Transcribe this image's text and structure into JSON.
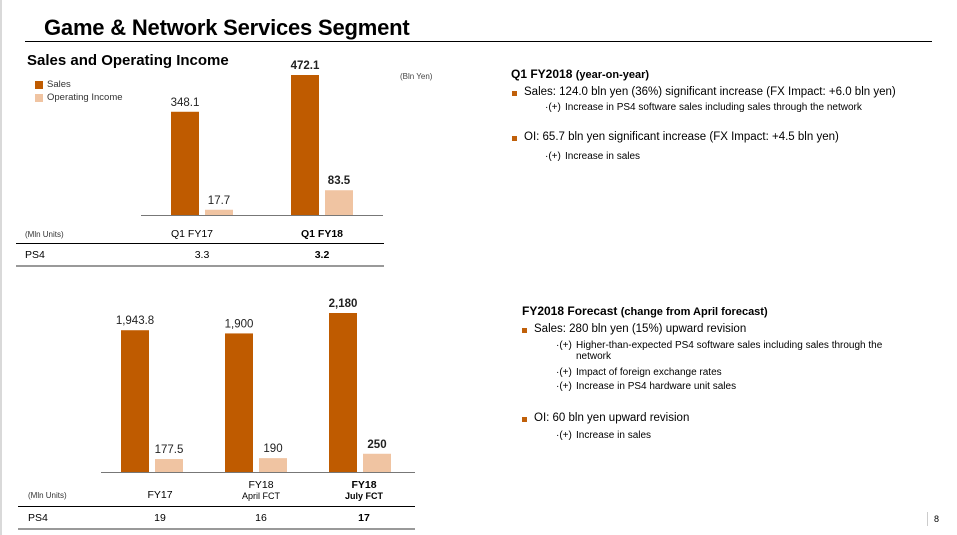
{
  "page": {
    "title": "Game & Network Services Segment",
    "page_number": "8"
  },
  "colors": {
    "sales": "#bf5b00",
    "operating_income": "#f0c4a2",
    "bullet": "#c0600a"
  },
  "top_chart": {
    "subtitle": "Sales and Operating Income",
    "unit_label": "(Bln Yen)",
    "legend": [
      "Sales",
      "Operating Income"
    ],
    "units_label": "(Mln Units)",
    "ps4_label": "PS4",
    "categories": [
      {
        "label": "Q1 FY17",
        "sub": "",
        "bold": false,
        "ps4": "3.3"
      },
      {
        "label": "Q1 FY18",
        "sub": "",
        "bold": true,
        "ps4": "3.2"
      }
    ]
  },
  "bottom_chart": {
    "units_label": "(Mln Units)",
    "ps4_label": "PS4",
    "categories": [
      {
        "label": "FY17",
        "sub": "",
        "bold": false,
        "ps4": "19"
      },
      {
        "label": "FY18",
        "sub": "April FCT",
        "bold": false,
        "ps4": "16"
      },
      {
        "label": "FY18",
        "sub": "July FCT",
        "bold": true,
        "ps4": "17"
      }
    ]
  },
  "chart_data": [
    {
      "type": "bar",
      "title": "Sales and Operating Income",
      "ylabel": "Bln Yen",
      "categories": [
        "Q1 FY17",
        "Q1 FY18"
      ],
      "series": [
        {
          "name": "Sales",
          "values": [
            348.1,
            472.1
          ],
          "labels": [
            "348.1",
            "472.1"
          ]
        },
        {
          "name": "Operating Income",
          "values": [
            17.7,
            83.5
          ],
          "labels": [
            "17.7",
            "83.5"
          ]
        }
      ],
      "bold_category_index": 1,
      "legend": "top-left",
      "grid": false
    },
    {
      "type": "bar",
      "title": "",
      "ylabel": "Bln Yen",
      "categories": [
        "FY17",
        "FY18 April FCT",
        "FY18 July FCT"
      ],
      "series": [
        {
          "name": "Sales",
          "values": [
            1943.8,
            1900,
            2180
          ],
          "labels": [
            "1,943.8",
            "1,900",
            "2,180"
          ]
        },
        {
          "name": "Operating Income",
          "values": [
            177.5,
            190,
            250
          ],
          "labels": [
            "177.5",
            "190",
            "250"
          ]
        }
      ],
      "bold_category_index": 2,
      "grid": false
    }
  ],
  "q1_section": {
    "heading": "Q1 FY2018",
    "heading_paren": "(year-on-year)",
    "bullets": [
      {
        "text": "Sales: 124.0 bln yen (36%) significant increase (FX Impact:  +6.0 bln yen)",
        "subs": [
          {
            "mark": "·(+)",
            "text": "Increase in PS4 software sales including sales through the network"
          }
        ]
      },
      {
        "text": "OI: 65.7 bln yen significant increase (FX Impact:  +4.5 bln yen)",
        "subs": [
          {
            "mark": "·(+)",
            "text": "Increase in sales"
          }
        ]
      }
    ]
  },
  "fy_section": {
    "heading": "FY2018 Forecast",
    "heading_paren": "(change from April forecast)",
    "bullets": [
      {
        "text": "Sales: 280 bln yen (15%) upward revision",
        "subs": [
          {
            "mark": "·(+)",
            "text": "Higher-than-expected PS4 software sales including sales through the network"
          },
          {
            "mark": "·(+)",
            "text": "Impact of foreign exchange rates"
          },
          {
            "mark": "·(+)",
            "text": "Increase in PS4 hardware unit sales"
          }
        ]
      },
      {
        "text": "OI: 60 bln yen upward revision",
        "subs": [
          {
            "mark": "·(+)",
            "text": "Increase in sales"
          }
        ]
      }
    ]
  }
}
